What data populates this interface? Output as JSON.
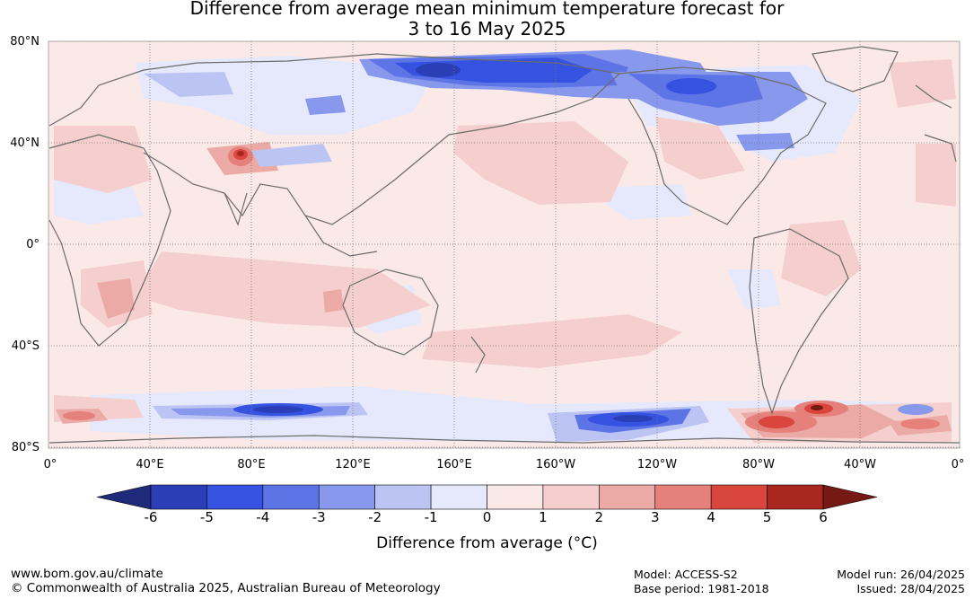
{
  "title": {
    "line1": "Difference from average mean minimum temperature forecast for",
    "line2": "3 to 16 May 2025"
  },
  "map": {
    "lat_labels": [
      "80°N",
      "40°N",
      "0°",
      "40°S",
      "80°S"
    ],
    "lon_labels": [
      "0°",
      "40°E",
      "80°E",
      "120°E",
      "160°E",
      "160°W",
      "120°W",
      "80°W",
      "40°W",
      "0°"
    ],
    "colors": {
      "gridline": "#777777",
      "coastline": "#6b6b6b"
    },
    "anomaly_regions": [
      {
        "name": "siberia-east-cold",
        "value": -4
      },
      {
        "name": "north-america-arctic-cold",
        "value": -3
      },
      {
        "name": "central-asia-warm-spot",
        "value": 5
      },
      {
        "name": "southern-ocean-indian-cold",
        "value": -4
      },
      {
        "name": "southern-ocean-pacific-cold",
        "value": -4
      },
      {
        "name": "drake-passage-warm",
        "value": 5
      },
      {
        "name": "southern-africa-warm",
        "value": 2
      }
    ]
  },
  "colorbar": {
    "ticks": [
      "-6",
      "-5",
      "-4",
      "-3",
      "-2",
      "-1",
      "0",
      "1",
      "2",
      "3",
      "4",
      "5",
      "6"
    ],
    "colors": [
      "#1f2a7a",
      "#2a3fb5",
      "#3552e0",
      "#5d74e6",
      "#8898ec",
      "#bcc4f3",
      "#e6e9fb",
      "#fbe9e8",
      "#f4cfcd",
      "#ecaaa6",
      "#e5807b",
      "#d9463d",
      "#a8271f",
      "#751912"
    ],
    "label": "Difference from average (°C)"
  },
  "footer": {
    "website": "www.bom.gov.au/climate",
    "copyright": "© Commonwealth of Australia 2025, Australian Bureau of Meteorology",
    "model": "Model: ACCESS-S2",
    "base_period": "Base period: 1981-2018",
    "model_run": "Model run: 26/04/2025",
    "issued": "Issued: 28/04/2025"
  }
}
